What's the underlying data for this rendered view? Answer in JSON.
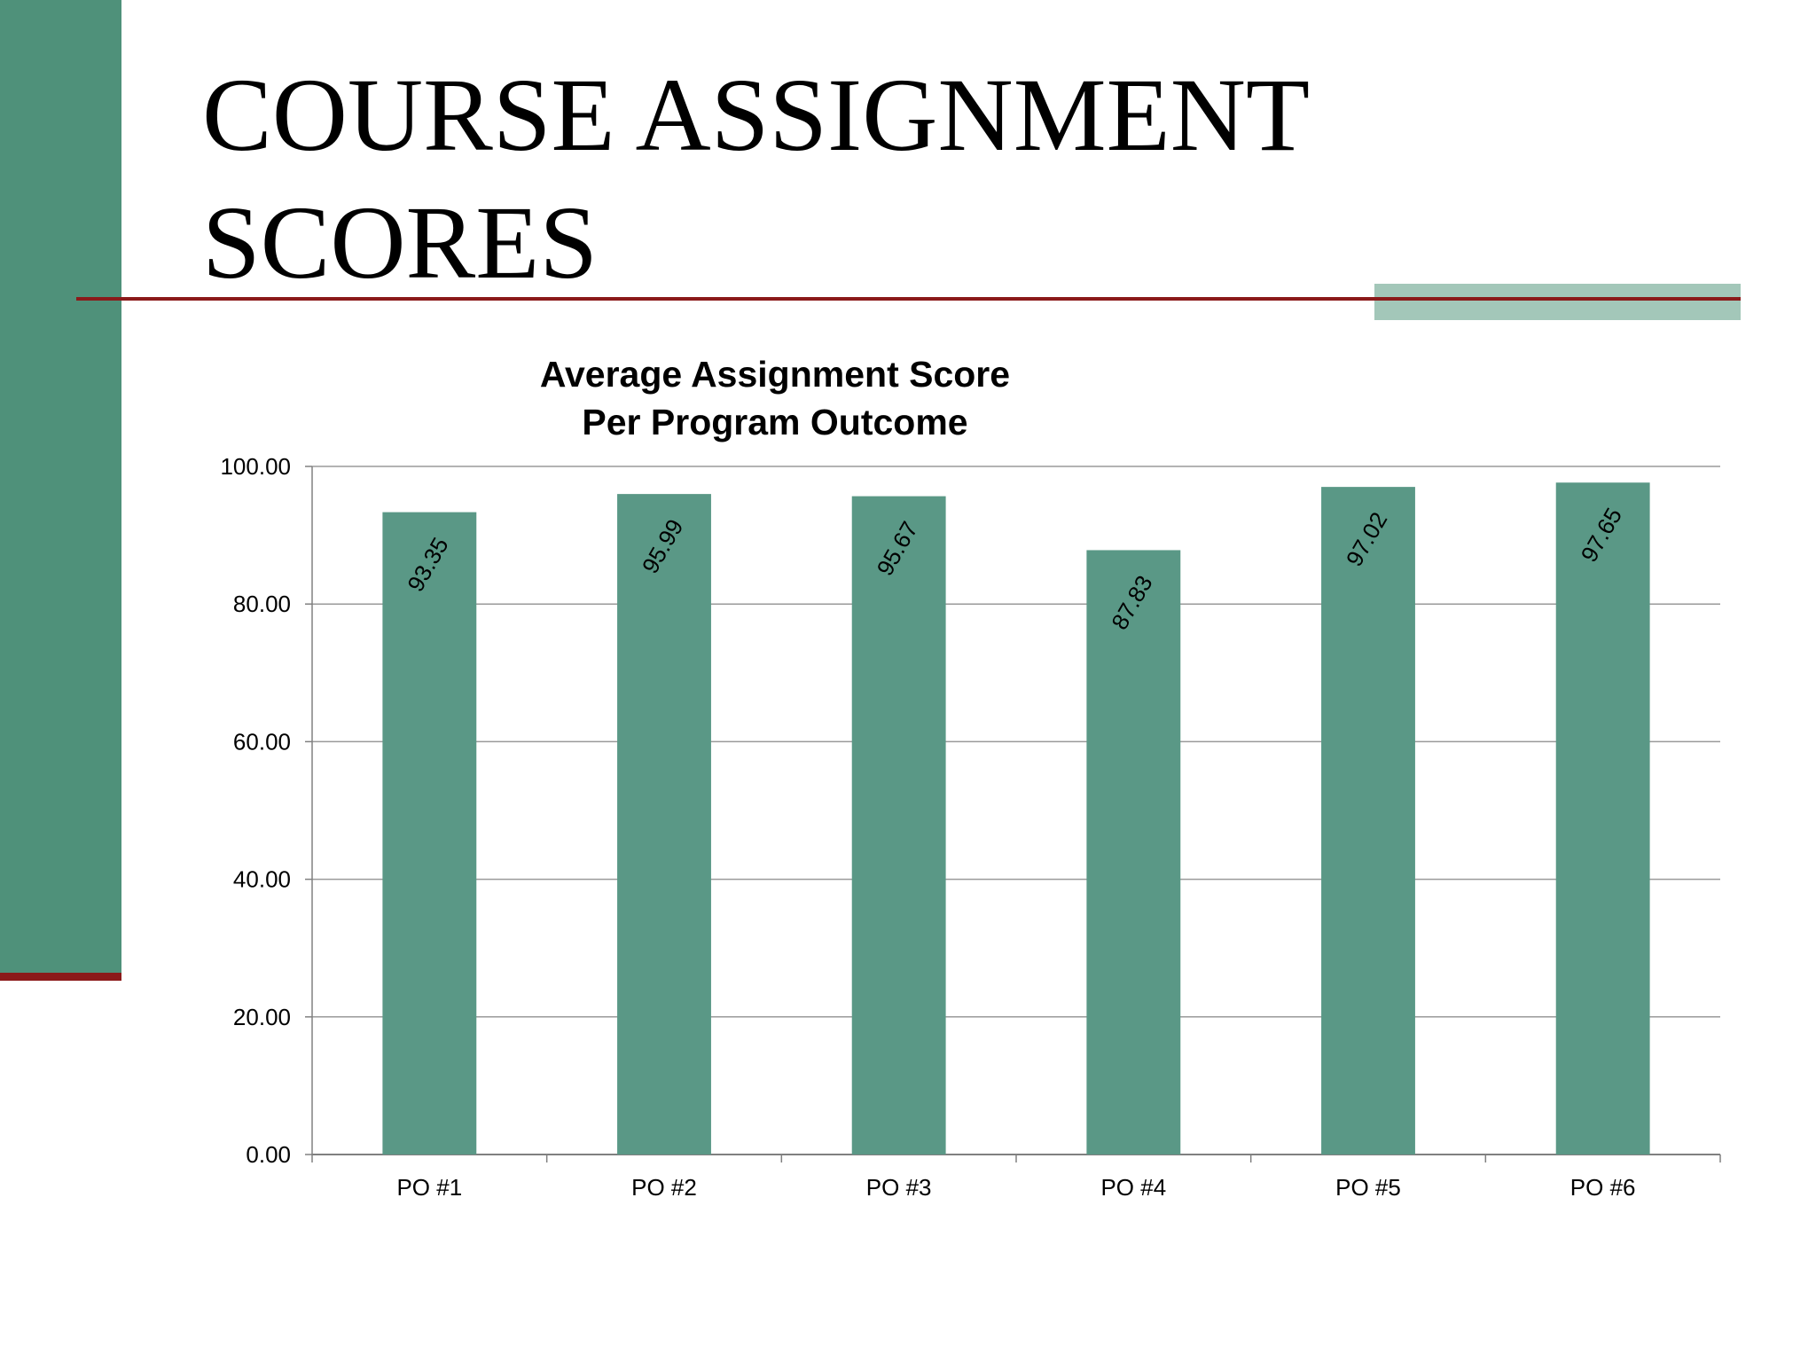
{
  "slide": {
    "title": "COURSE ASSIGNMENT SCORES"
  },
  "colors": {
    "side_bar": "#4f917a",
    "accent_red": "#8b1a1a",
    "accent_light": "#a3c7b9",
    "bar_fill": "#5a9886",
    "grid": "#9a9a9a"
  },
  "chart_data": {
    "type": "bar",
    "title_lines": [
      "Average Assignment  Score",
      "Per Program Outcome"
    ],
    "categories": [
      "PO #1",
      "PO #2",
      "PO #3",
      "PO #4",
      "PO #5",
      "PO #6"
    ],
    "values": [
      93.35,
      95.99,
      95.67,
      87.83,
      97.02,
      97.65
    ],
    "data_labels": [
      "93.35",
      "95.99",
      "95.67",
      "87.83",
      "97.02",
      "97.65"
    ],
    "y_ticks": [
      "0.00",
      "20.00",
      "40.00",
      "60.00",
      "80.00",
      "100.00"
    ],
    "ylim": [
      0,
      100
    ],
    "grid": true,
    "legend": "none"
  }
}
